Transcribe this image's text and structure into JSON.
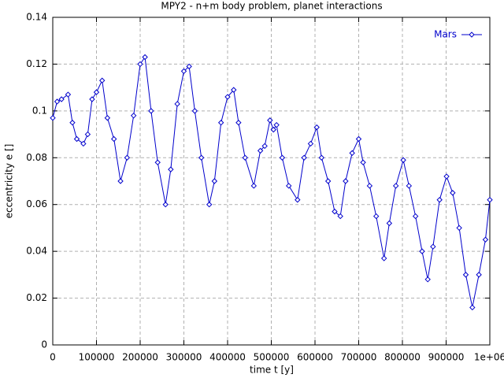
{
  "chart_data": {
    "type": "line",
    "title": "MPY2 - n+m body problem, planet interactions",
    "x_label": "time t [y]",
    "y_label": "eccentricity e []",
    "x": [
      0,
      10000,
      20000,
      35000,
      45000,
      55000,
      70000,
      80000,
      90000,
      100000,
      113000,
      125000,
      140000,
      155000,
      170000,
      185000,
      200000,
      211000,
      225000,
      240000,
      258000,
      270000,
      285000,
      300000,
      312000,
      325000,
      340000,
      358000,
      370000,
      385000,
      400000,
      414000,
      425000,
      440000,
      460000,
      475000,
      485000,
      497000,
      505000,
      512000,
      525000,
      540000,
      560000,
      575000,
      590000,
      604000,
      615000,
      630000,
      645000,
      658000,
      670000,
      685000,
      700000,
      710000,
      725000,
      740000,
      758000,
      770000,
      785000,
      802000,
      815000,
      830000,
      845000,
      858000,
      870000,
      885000,
      901000,
      915000,
      930000,
      945000,
      960000,
      975000,
      990000,
      1000000
    ],
    "series": [
      {
        "name": "Mars",
        "color": "#0000cc",
        "values": [
          0.097,
          0.104,
          0.105,
          0.107,
          0.095,
          0.088,
          0.086,
          0.09,
          0.105,
          0.108,
          0.113,
          0.097,
          0.088,
          0.07,
          0.08,
          0.098,
          0.12,
          0.123,
          0.1,
          0.078,
          0.06,
          0.075,
          0.103,
          0.117,
          0.119,
          0.1,
          0.08,
          0.06,
          0.07,
          0.095,
          0.106,
          0.109,
          0.095,
          0.08,
          0.068,
          0.083,
          0.085,
          0.096,
          0.092,
          0.094,
          0.08,
          0.068,
          0.062,
          0.08,
          0.086,
          0.093,
          0.08,
          0.07,
          0.057,
          0.055,
          0.07,
          0.082,
          0.088,
          0.078,
          0.068,
          0.055,
          0.037,
          0.052,
          0.068,
          0.079,
          0.068,
          0.055,
          0.04,
          0.028,
          0.042,
          0.062,
          0.072,
          0.065,
          0.05,
          0.03,
          0.016,
          0.03,
          0.045,
          0.062
        ]
      }
    ],
    "xlim": [
      0,
      1000000
    ],
    "ylim": [
      0,
      0.14
    ],
    "xticks": [
      0,
      100000,
      200000,
      300000,
      400000,
      500000,
      600000,
      700000,
      800000,
      900000,
      {
        "value": 1000000,
        "label": "1e+06"
      }
    ],
    "yticks": [
      0,
      0.02,
      0.04,
      0.06,
      0.08,
      0.1,
      0.12,
      0.14
    ],
    "grid": true,
    "legend": "top-right"
  }
}
